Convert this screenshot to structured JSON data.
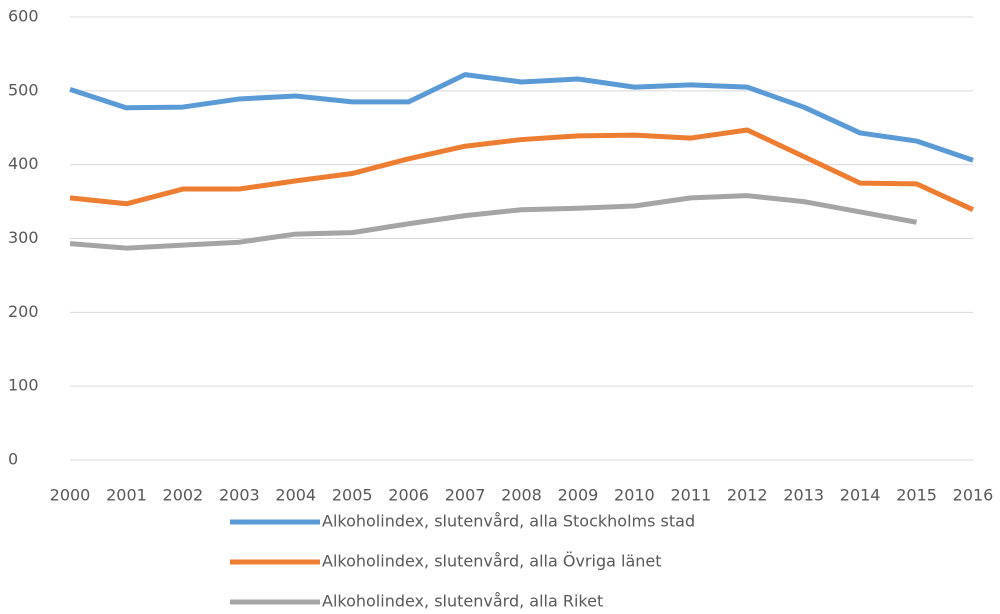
{
  "chart_data": {
    "type": "line",
    "categories": [
      "2000",
      "2001",
      "2002",
      "2003",
      "2004",
      "2005",
      "2006",
      "2007",
      "2008",
      "2009",
      "2010",
      "2011",
      "2012",
      "2013",
      "2014",
      "2015",
      "2016"
    ],
    "series": [
      {
        "name": "Alkoholindex, slutenvård, alla Stockholms stad",
        "color": "#5b9bd5",
        "values": [
          502,
          477,
          478,
          489,
          493,
          485,
          485,
          522,
          512,
          516,
          505,
          508,
          505,
          478,
          443,
          432,
          406
        ]
      },
      {
        "name": "Alkoholindex, slutenvård, alla Övriga länet",
        "color": "#ed7d31",
        "values": [
          355,
          347,
          367,
          367,
          378,
          388,
          408,
          425,
          434,
          439,
          440,
          436,
          447,
          411,
          375,
          374,
          339
        ]
      },
      {
        "name": "Alkoholindex, slutenvård, alla Riket",
        "color": "#a5a5a5",
        "values": [
          293,
          287,
          291,
          295,
          306,
          308,
          320,
          331,
          339,
          341,
          344,
          355,
          358,
          350,
          336,
          322,
          null
        ]
      }
    ],
    "ylim": [
      0,
      600
    ],
    "yticks": [
      0,
      100,
      200,
      300,
      400,
      500,
      600
    ],
    "grid": true,
    "legend": "bottom"
  }
}
